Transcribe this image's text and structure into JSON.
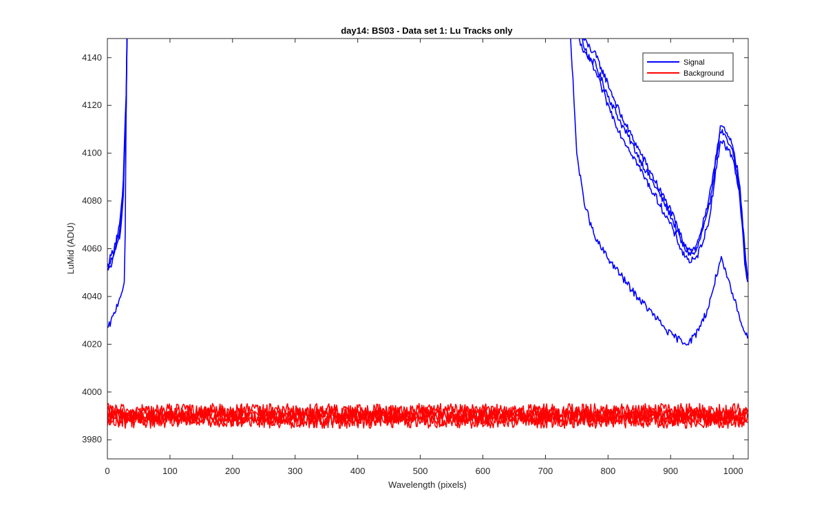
{
  "chart_data": {
    "type": "line",
    "title": "day14: BS03 - Data set 1: Lu Tracks only",
    "xlabel": "Wavelength (pixels)",
    "ylabel": "LuMid (ADU)",
    "xlim": [
      0,
      1024
    ],
    "ylim": [
      3972,
      4148
    ],
    "x_ticks": [
      0,
      100,
      200,
      300,
      400,
      500,
      600,
      700,
      800,
      900,
      1000
    ],
    "y_ticks": [
      3980,
      4000,
      4020,
      4040,
      4060,
      4080,
      4100,
      4120,
      4140
    ],
    "grid": false,
    "legend_location": "top-right",
    "legend": [
      {
        "label": "Signal",
        "color": "#0000ff"
      },
      {
        "label": "Background",
        "color": "#ff0000"
      }
    ],
    "series": [
      {
        "group": "Signal",
        "color": "#0000ff",
        "x": [
          0,
          10,
          20,
          25,
          30,
          32,
          740,
          760,
          780,
          800,
          820,
          840,
          860,
          880,
          900,
          920,
          930,
          940,
          960,
          980,
          1000,
          1010,
          1020,
          1024
        ],
        "y": [
          4051,
          4058,
          4068,
          4082,
          4120,
          4160,
          4160,
          4143,
          4137,
          4124,
          4113,
          4103,
          4093,
          4084,
          4074,
          4061,
          4058,
          4058,
          4075,
          4110,
          4100,
          4085,
          4052,
          4045
        ]
      },
      {
        "group": "Signal",
        "color": "#0000ff",
        "x": [
          0,
          10,
          20,
          25,
          30,
          32,
          745,
          760,
          780,
          800,
          820,
          840,
          860,
          880,
          900,
          920,
          930,
          940,
          960,
          980,
          1000,
          1010,
          1020,
          1024
        ],
        "y": [
          4053,
          4060,
          4070,
          4085,
          4125,
          4160,
          4160,
          4148,
          4141,
          4129,
          4116,
          4106,
          4096,
          4086,
          4076,
          4063,
          4060,
          4060,
          4078,
          4112,
          4103,
          4088,
          4055,
          4047
        ]
      },
      {
        "group": "Signal",
        "color": "#0000ff",
        "x": [
          0,
          10,
          20,
          25,
          30,
          32,
          750,
          760,
          780,
          800,
          820,
          840,
          860,
          880,
          900,
          920,
          930,
          940,
          960,
          980,
          1000,
          1010,
          1020,
          1024
        ],
        "y": [
          4050,
          4056,
          4066,
          4080,
          4118,
          4160,
          4160,
          4145,
          4134,
          4120,
          4108,
          4099,
          4089,
          4080,
          4070,
          4058,
          4055,
          4055,
          4070,
          4106,
          4098,
          4083,
          4050,
          4043
        ]
      },
      {
        "group": "Signal",
        "color": "#0000ff",
        "x": [
          0,
          10,
          20,
          28,
          30,
          32,
          738,
          750,
          760,
          770,
          780,
          800,
          820,
          840,
          860,
          880,
          900,
          920,
          930,
          940,
          960,
          980,
          1000,
          1010,
          1020,
          1024
        ],
        "y": [
          4026,
          4032,
          4040,
          4046,
          4120,
          4160,
          4160,
          4100,
          4082,
          4072,
          4064,
          4056,
          4049,
          4042,
          4036,
          4030,
          4024,
          4021,
          4021,
          4024,
          4035,
          4056,
          4040,
          4032,
          4024,
          4022
        ]
      },
      {
        "group": "Background",
        "color": "#ff0000",
        "x": [
          0,
          1024
        ],
        "y": [
          3988,
          3988
        ]
      },
      {
        "group": "Background",
        "color": "#ff0000",
        "x": [
          0,
          1024
        ],
        "y": [
          3990,
          3990
        ]
      },
      {
        "group": "Background",
        "color": "#ff0000",
        "x": [
          0,
          1024
        ],
        "y": [
          3992,
          3992
        ]
      },
      {
        "group": "Background",
        "color": "#ff0000",
        "x": [
          0,
          1024
        ],
        "y": [
          3991,
          3991
        ]
      },
      {
        "group": "Background",
        "color": "#ff0000",
        "x": [
          0,
          1024
        ],
        "y": [
          3989,
          3989
        ]
      }
    ]
  }
}
